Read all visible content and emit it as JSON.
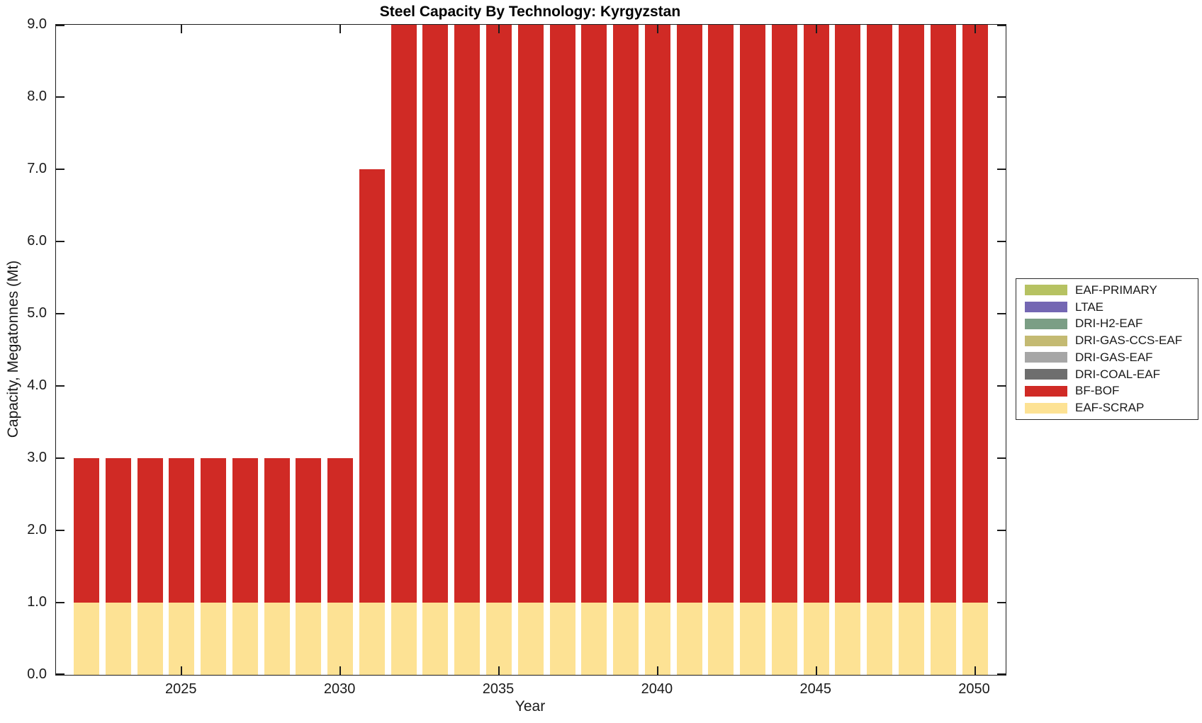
{
  "title": "Steel Capacity By Technology: Kyrgyzstan",
  "colors": {
    "background": "#ffffff",
    "axis": "#1c1c1c",
    "bf_bof_red": "#d02a25",
    "eaf_scrap_yellow": "#fde294"
  },
  "chart_data": {
    "type": "bar",
    "stacked": true,
    "title": "Steel Capacity By Technology: Kyrgyzstan",
    "xlabel": "Year",
    "ylabel": "Capacity, Megatonnes (Mt)",
    "x": [
      2022,
      2023,
      2024,
      2025,
      2026,
      2027,
      2028,
      2029,
      2030,
      2031,
      2032,
      2033,
      2034,
      2035,
      2036,
      2037,
      2038,
      2039,
      2040,
      2041,
      2042,
      2043,
      2044,
      2045,
      2046,
      2047,
      2048,
      2049,
      2050
    ],
    "series": [
      {
        "name": "EAF-SCRAP",
        "color": "#fde294",
        "values": [
          1,
          1,
          1,
          1,
          1,
          1,
          1,
          1,
          1,
          1,
          1,
          1,
          1,
          1,
          1,
          1,
          1,
          1,
          1,
          1,
          1,
          1,
          1,
          1,
          1,
          1,
          1,
          1,
          1
        ]
      },
      {
        "name": "BF-BOF",
        "color": "#d02a25",
        "values": [
          2,
          2,
          2,
          2,
          2,
          2,
          2,
          2,
          2,
          6,
          8,
          8,
          8,
          8,
          8,
          8,
          8,
          8,
          8,
          8,
          8,
          8,
          8,
          8,
          8,
          8,
          8,
          8,
          8
        ]
      }
    ],
    "ylim": [
      0,
      9
    ],
    "ytick_labels": [
      "0.0",
      "1.0",
      "2.0",
      "3.0",
      "4.0",
      "5.0",
      "6.0",
      "7.0",
      "8.0",
      "9.0"
    ],
    "xticks": [
      2025,
      2030,
      2035,
      2040,
      2045,
      2050
    ],
    "grid": false,
    "tick_style": "inward-all-sides",
    "bar_width_frac": 0.8,
    "legend": {
      "position": "right-outside",
      "entries": [
        {
          "label": "EAF-PRIMARY",
          "color": "#b6c262"
        },
        {
          "label": "LTAE",
          "color": "#7467b3"
        },
        {
          "label": "DRI-H2-EAF",
          "color": "#7b9e85"
        },
        {
          "label": "DRI-GAS-CCS-EAF",
          "color": "#c4ba72"
        },
        {
          "label": "DRI-GAS-EAF",
          "color": "#a6a6a6"
        },
        {
          "label": "DRI-COAL-EAF",
          "color": "#6e6e6e"
        },
        {
          "label": "BF-BOF",
          "color": "#d02a25"
        },
        {
          "label": "EAF-SCRAP",
          "color": "#fde294"
        }
      ]
    }
  }
}
